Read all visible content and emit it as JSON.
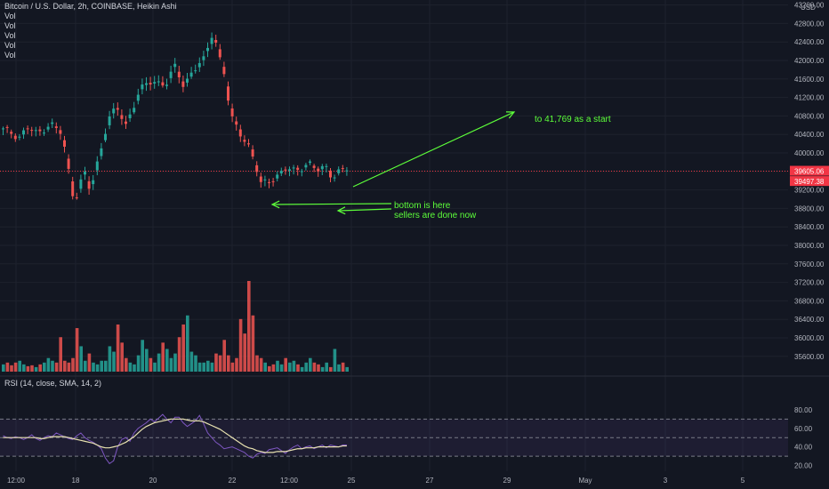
{
  "header": {
    "symbol_line": "Bitcoin / U.S. Dollar, 2h, COINBASE, Heikin Ashi",
    "volume_labels": [
      "Vol",
      "Vol",
      "Vol",
      "Vol",
      "Vol"
    ],
    "rsi_label": "RSI (14, close, SMA, 14, 2)"
  },
  "annotations": {
    "target": "to 41,769 as a start",
    "bottom_line1": "bottom is here",
    "bottom_line2": "sellers are done now"
  },
  "colors": {
    "background": "#131722",
    "up": "#26a69a",
    "down": "#ef5350",
    "annotation": "#5dff3a",
    "rsi_line": "#7e57c2",
    "rsi_ma": "#e8e2b0",
    "current_price_tag": "#f23645"
  },
  "chart_data": [
    {
      "type": "candlestick",
      "currency": "USD",
      "y_axis_title": "USD",
      "ylim": [
        35400,
        43600
      ],
      "y_ticks": [
        35600,
        36000,
        36400,
        36800,
        37200,
        37600,
        38000,
        38400,
        38800,
        39200,
        39600,
        40000,
        40400,
        40800,
        41200,
        41600,
        42000,
        42400,
        42800,
        43200
      ],
      "y_tick_labels": [
        "35600.00",
        "36000.00",
        "36400.00",
        "36800.00",
        "37200.00",
        "37600.00",
        "38000.00",
        "38400.00",
        "38800.00",
        "39200.00",
        "39600.00",
        "40000.00",
        "40400.00",
        "40800.00",
        "41200.00",
        "41600.00",
        "42000.00",
        "42400.00",
        "42800.00",
        "43200.00"
      ],
      "x_ticks": [
        "12:00",
        "18",
        "20",
        "22",
        "12:00",
        "25",
        "27",
        "29",
        "May",
        "3",
        "5"
      ],
      "current_price": 39605.06,
      "current_price_label": "39605.06",
      "second_price": 39497.38,
      "second_price_label": "39497.38",
      "key_levels": {
        "high": 42950,
        "low": 38650,
        "target": 41769
      }
    },
    {
      "type": "bar",
      "name": "Vol",
      "description": "volume bars, colored by candle direction",
      "relative_values": [
        0.08,
        0.1,
        0.07,
        0.1,
        0.12,
        0.08,
        0.06,
        0.07,
        0.05,
        0.08,
        0.1,
        0.15,
        0.12,
        0.1,
        0.38,
        0.12,
        0.1,
        0.15,
        0.48,
        0.28,
        0.12,
        0.2,
        0.1,
        0.08,
        0.12,
        0.12,
        0.28,
        0.22,
        0.52,
        0.32,
        0.15,
        0.1,
        0.08,
        0.18,
        0.35,
        0.25,
        0.15,
        0.1,
        0.2,
        0.32,
        0.25,
        0.15,
        0.2,
        0.38,
        0.52,
        0.62,
        0.22,
        0.18,
        0.1,
        0.1,
        0.12,
        0.1,
        0.2,
        0.18,
        0.35,
        0.18,
        0.1,
        0.15,
        0.58,
        0.42,
        1.0,
        0.62,
        0.18,
        0.15,
        0.1,
        0.06,
        0.08,
        0.12,
        0.08,
        0.15,
        0.1,
        0.12,
        0.08,
        0.05,
        0.1,
        0.15,
        0.1,
        0.08,
        0.05,
        0.1,
        0.05,
        0.25,
        0.08,
        0.1,
        0.05
      ]
    },
    {
      "type": "line",
      "name": "RSI",
      "ylim": [
        16,
        82
      ],
      "y_ticks": [
        20,
        40,
        60,
        80
      ],
      "y_tick_labels": [
        "20.00",
        "40.00",
        "60.00",
        "80.00"
      ],
      "bands": [
        30,
        50,
        70
      ],
      "rsi_values": [
        52,
        50,
        49,
        51,
        50,
        48,
        50,
        53,
        49,
        47,
        50,
        52,
        51,
        55,
        53,
        51,
        49,
        48,
        52,
        55,
        50,
        47,
        45,
        42,
        38,
        28,
        22,
        25,
        40,
        48,
        50,
        46,
        55,
        60,
        63,
        66,
        70,
        67,
        71,
        75,
        70,
        66,
        72,
        72,
        66,
        62,
        65,
        68,
        74,
        65,
        55,
        50,
        45,
        42,
        38,
        39,
        40,
        38,
        36,
        34,
        30,
        28,
        32,
        34,
        33,
        37,
        38,
        39,
        36,
        33,
        37,
        40,
        42,
        38,
        40,
        41,
        38,
        40,
        42,
        39,
        42,
        41,
        40,
        42,
        42
      ],
      "sma_values": [
        50,
        50,
        50,
        50,
        50,
        50,
        50,
        50,
        50,
        49,
        49,
        50,
        51,
        51,
        51,
        51,
        50,
        49,
        48,
        47,
        46,
        45,
        44,
        42,
        40,
        39,
        39,
        40,
        41,
        43,
        45,
        48,
        51,
        55,
        59,
        62,
        64,
        66,
        67,
        68,
        69,
        70,
        70,
        70,
        70,
        69,
        68,
        68,
        68,
        67,
        65,
        63,
        61,
        59,
        56,
        53,
        50,
        47,
        44,
        41,
        39,
        38,
        36,
        35,
        34,
        34,
        34,
        35,
        35,
        35,
        36,
        37,
        38,
        38,
        39,
        39,
        39,
        40,
        40,
        40,
        40,
        40,
        40,
        41,
        41
      ],
      "x_ticks": [
        "12:00",
        "18",
        "20",
        "22",
        "12:00",
        "25",
        "27",
        "29",
        "May",
        "3",
        "5"
      ]
    }
  ]
}
